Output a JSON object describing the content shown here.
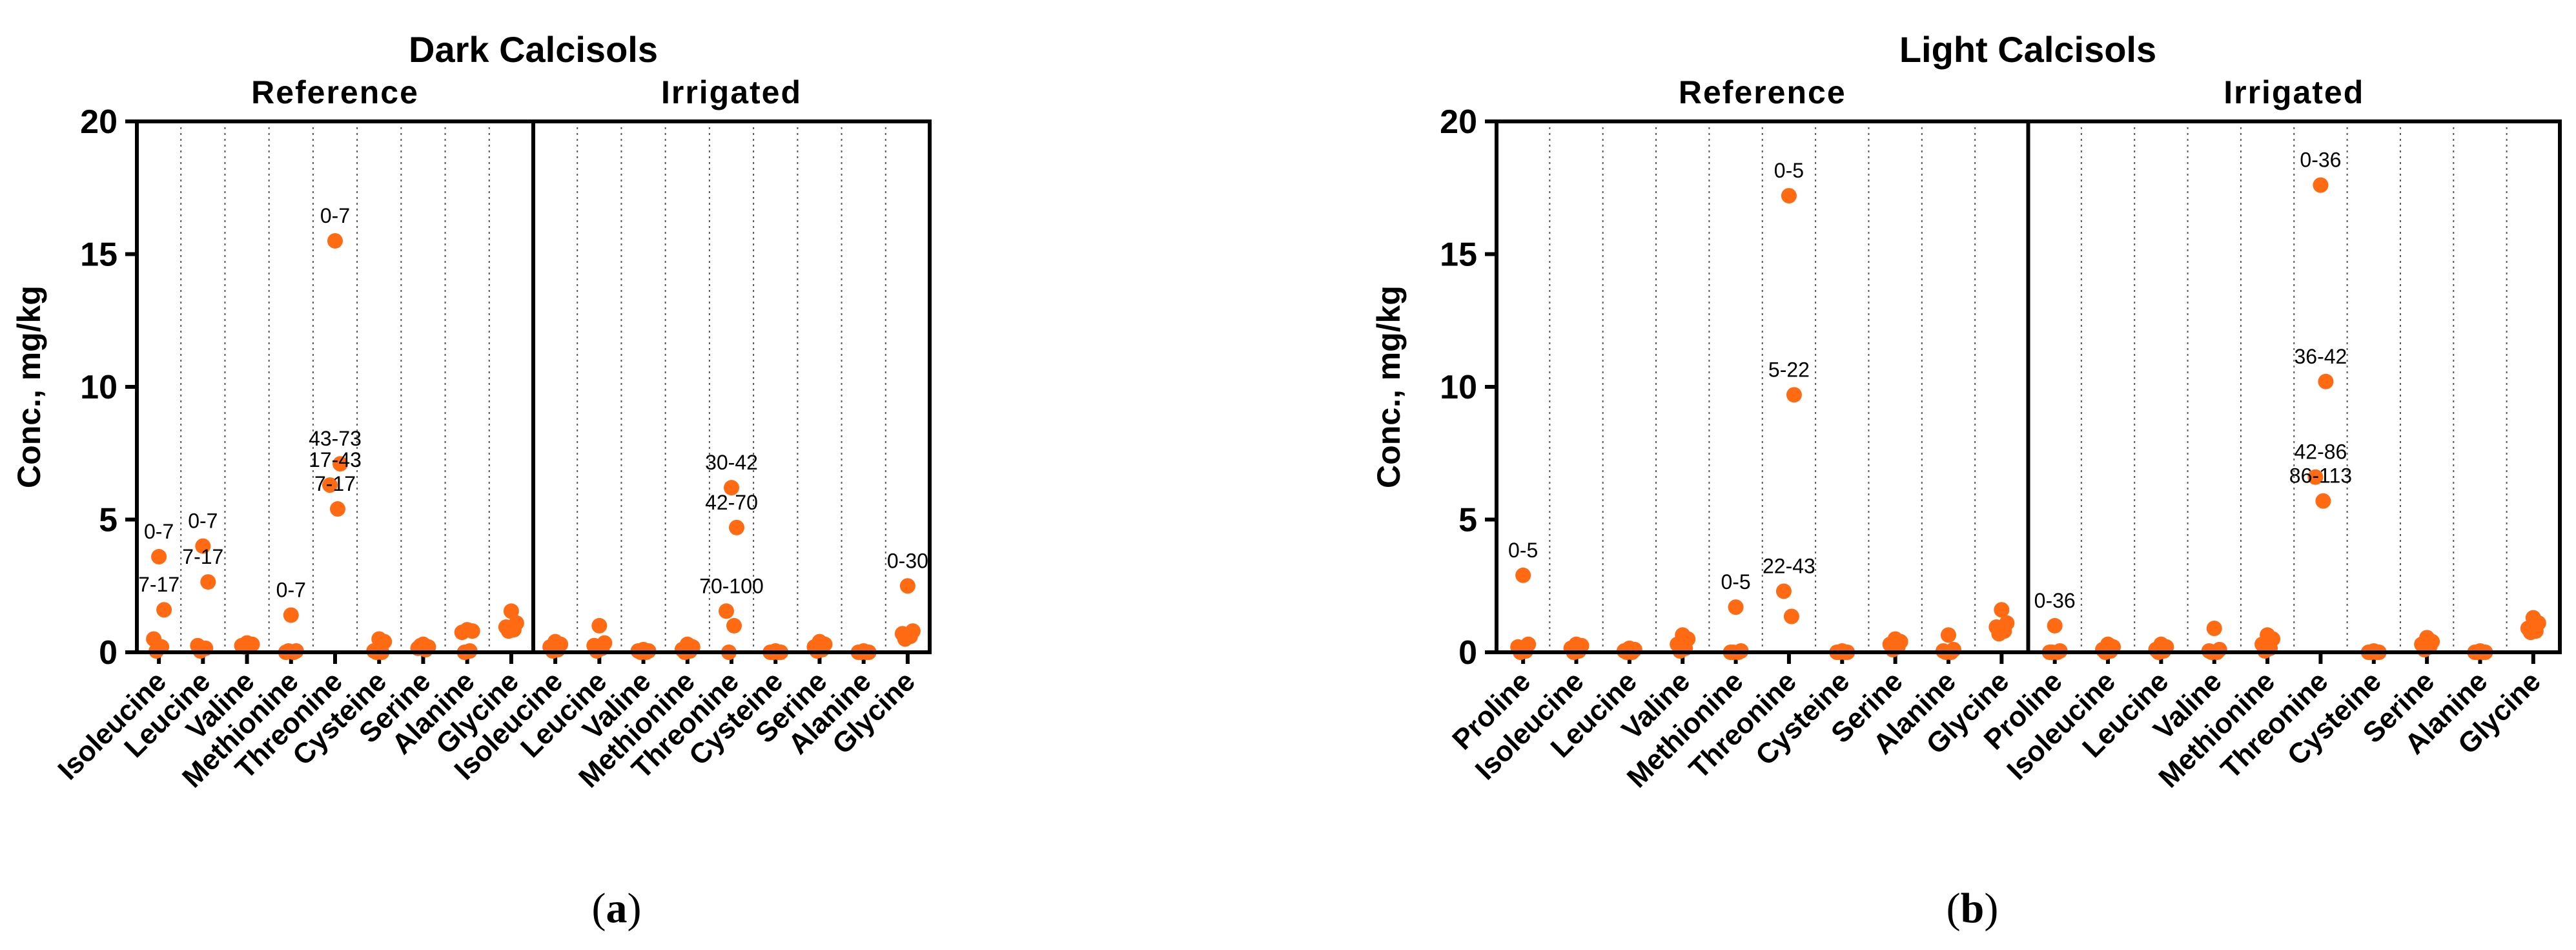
{
  "panels": [
    {
      "label_prefix": "(",
      "label_letter": "a",
      "label_suffix": ")"
    },
    {
      "label_prefix": "(",
      "label_letter": "b",
      "label_suffix": ")"
    }
  ],
  "marker_color": "#FF6A13",
  "chart_data": [
    {
      "type": "scatter",
      "title": "Dark Calcisols",
      "ylabel": "Conc., mg/kg",
      "ylim": [
        0,
        20
      ],
      "yticks": [
        0,
        5,
        10,
        15,
        20
      ],
      "grid": "dotted vertical separators between categories",
      "groups": [
        {
          "name": "Reference",
          "categories": [
            "Isoleucine",
            "Leucine",
            "Valine",
            "Methionine",
            "Threonine",
            "Cysteine",
            "Serine",
            "Alanine",
            "Glycine"
          ],
          "points": [
            [
              {
                "y": 3.6,
                "label": "0-7"
              },
              {
                "y": 1.6,
                "label": "7-17"
              },
              {
                "y": 0.5
              },
              {
                "y": 0.2
              },
              {
                "y": 0.05
              }
            ],
            [
              {
                "y": 4.0,
                "label": "0-7"
              },
              {
                "y": 2.65,
                "label": "7-17"
              },
              {
                "y": 0.25
              },
              {
                "y": 0.15
              },
              {
                "y": 0.05
              }
            ],
            [
              {
                "y": 0.35
              },
              {
                "y": 0.3
              },
              {
                "y": 0.25
              },
              {
                "y": 0.3
              },
              {
                "y": 0.2
              }
            ],
            [
              {
                "y": 1.4,
                "label": "0-7"
              },
              {
                "y": 0.05
              },
              {
                "y": 0.0
              },
              {
                "y": 0.0
              },
              {
                "y": 0.05
              }
            ],
            [
              {
                "y": 15.5,
                "label": "0-7"
              },
              {
                "y": 7.1,
                "label": "43-73"
              },
              {
                "y": 6.3,
                "label": "17-43"
              },
              {
                "y": 5.4,
                "label": "7-17"
              }
            ],
            [
              {
                "y": 0.5
              },
              {
                "y": 0.4
              },
              {
                "y": 0.05
              },
              {
                "y": 0.0
              },
              {
                "y": 0.0
              }
            ],
            [
              {
                "y": 0.3
              },
              {
                "y": 0.2
              },
              {
                "y": 0.15
              },
              {
                "y": 0.1
              },
              {
                "y": 0.25
              }
            ],
            [
              {
                "y": 0.85
              },
              {
                "y": 0.8
              },
              {
                "y": 0.75
              },
              {
                "y": 0.05
              },
              {
                "y": 0.0
              }
            ],
            [
              {
                "y": 1.55
              },
              {
                "y": 1.1
              },
              {
                "y": 0.95
              },
              {
                "y": 0.85
              },
              {
                "y": 0.8
              }
            ]
          ]
        },
        {
          "name": "Irrigated",
          "categories": [
            "Isoleucine",
            "Leucine",
            "Valine",
            "Methionine",
            "Threonine",
            "Cysteine",
            "Serine",
            "Alanine",
            "Glycine"
          ],
          "points": [
            [
              {
                "y": 0.4
              },
              {
                "y": 0.3
              },
              {
                "y": 0.2
              },
              {
                "y": 0.1
              },
              {
                "y": 0.05
              }
            ],
            [
              {
                "y": 1.0
              },
              {
                "y": 0.35
              },
              {
                "y": 0.25
              },
              {
                "y": 0.15
              },
              {
                "y": 0.05
              }
            ],
            [
              {
                "y": 0.1
              },
              {
                "y": 0.05
              },
              {
                "y": 0.05
              },
              {
                "y": 0.0
              },
              {
                "y": 0.0
              }
            ],
            [
              {
                "y": 0.3
              },
              {
                "y": 0.2
              },
              {
                "y": 0.1
              },
              {
                "y": 0.05
              },
              {
                "y": 0.0
              }
            ],
            [
              {
                "y": 6.2,
                "label": "30-42"
              },
              {
                "y": 4.7,
                "label": "42-70"
              },
              {
                "y": 1.55,
                "label": "70-100"
              },
              {
                "y": 1.0
              },
              {
                "y": 0.0
              }
            ],
            [
              {
                "y": 0.05
              },
              {
                "y": 0.0
              },
              {
                "y": 0.0
              },
              {
                "y": 0.0
              },
              {
                "y": 0.0
              }
            ],
            [
              {
                "y": 0.4
              },
              {
                "y": 0.3
              },
              {
                "y": 0.2
              },
              {
                "y": 0.1
              },
              {
                "y": 0.05
              }
            ],
            [
              {
                "y": 0.05
              },
              {
                "y": 0.0
              },
              {
                "y": 0.0
              },
              {
                "y": 0.0
              },
              {
                "y": 0.0
              }
            ],
            [
              {
                "y": 2.5,
                "label": "0-30"
              },
              {
                "y": 0.8
              },
              {
                "y": 0.7
              },
              {
                "y": 0.6
              },
              {
                "y": 0.5
              }
            ]
          ]
        }
      ]
    },
    {
      "type": "scatter",
      "title": "Light Calcisols",
      "ylabel": "Conc., mg/kg",
      "ylim": [
        0,
        20
      ],
      "yticks": [
        0,
        5,
        10,
        15,
        20
      ],
      "grid": "dotted vertical separators between categories",
      "groups": [
        {
          "name": "Reference",
          "categories": [
            "Proline",
            "Isoleucine",
            "Leucine",
            "Valine",
            "Methionine",
            "Threonine",
            "Cysteine",
            "Serine",
            "Alanine",
            "Glycine"
          ],
          "points": [
            [
              {
                "y": 2.9,
                "label": "0-5"
              },
              {
                "y": 0.3
              },
              {
                "y": 0.2
              },
              {
                "y": 0.05
              },
              {
                "y": 0.0
              }
            ],
            [
              {
                "y": 0.3
              },
              {
                "y": 0.25
              },
              {
                "y": 0.15
              },
              {
                "y": 0.05
              },
              {
                "y": 0.0
              }
            ],
            [
              {
                "y": 0.15
              },
              {
                "y": 0.1
              },
              {
                "y": 0.05
              },
              {
                "y": 0.0
              },
              {
                "y": 0.0
              }
            ],
            [
              {
                "y": 0.65
              },
              {
                "y": 0.5
              },
              {
                "y": 0.3
              },
              {
                "y": 0.15
              },
              {
                "y": 0.05
              }
            ],
            [
              {
                "y": 1.7,
                "label": "0-5"
              },
              {
                "y": 0.05
              },
              {
                "y": 0.0
              },
              {
                "y": 0.0
              },
              {
                "y": 0.0
              }
            ],
            [
              {
                "y": 17.2,
                "label": "0-5"
              },
              {
                "y": 9.7,
                "label": "5-22"
              },
              {
                "y": 2.3,
                "label": "22-43"
              },
              {
                "y": 1.35
              }
            ],
            [
              {
                "y": 0.05
              },
              {
                "y": 0.0
              },
              {
                "y": 0.0
              },
              {
                "y": 0.0
              },
              {
                "y": 0.0
              }
            ],
            [
              {
                "y": 0.5
              },
              {
                "y": 0.4
              },
              {
                "y": 0.3
              },
              {
                "y": 0.2
              },
              {
                "y": 0.1
              }
            ],
            [
              {
                "y": 0.65
              },
              {
                "y": 0.1
              },
              {
                "y": 0.05
              },
              {
                "y": 0.0
              },
              {
                "y": 0.0
              }
            ],
            [
              {
                "y": 1.6
              },
              {
                "y": 1.1
              },
              {
                "y": 0.95
              },
              {
                "y": 0.8
              },
              {
                "y": 0.7
              }
            ]
          ]
        },
        {
          "name": "Irrigated",
          "categories": [
            "Proline",
            "Isoleucine",
            "Leucine",
            "Valine",
            "Methionine",
            "Threonine",
            "Cysteine",
            "Serine",
            "Alanine",
            "Glycine"
          ],
          "points": [
            [
              {
                "y": 1.0,
                "label": "0-36"
              },
              {
                "y": 0.05
              },
              {
                "y": 0.0
              },
              {
                "y": 0.0
              },
              {
                "y": 0.0
              }
            ],
            [
              {
                "y": 0.3
              },
              {
                "y": 0.2
              },
              {
                "y": 0.1
              },
              {
                "y": 0.05
              },
              {
                "y": 0.0
              }
            ],
            [
              {
                "y": 0.3
              },
              {
                "y": 0.2
              },
              {
                "y": 0.1
              },
              {
                "y": 0.05
              },
              {
                "y": 0.0
              }
            ],
            [
              {
                "y": 0.9
              },
              {
                "y": 0.1
              },
              {
                "y": 0.05
              },
              {
                "y": 0.0
              },
              {
                "y": 0.0
              }
            ],
            [
              {
                "y": 0.65
              },
              {
                "y": 0.5
              },
              {
                "y": 0.3
              },
              {
                "y": 0.15
              },
              {
                "y": 0.05
              }
            ],
            [
              {
                "y": 17.6,
                "label": "0-36"
              },
              {
                "y": 10.2,
                "label": "36-42"
              },
              {
                "y": 6.6,
                "label": "42-86"
              },
              {
                "y": 5.7,
                "label": "86-113"
              }
            ],
            [
              {
                "y": 0.05
              },
              {
                "y": 0.0
              },
              {
                "y": 0.0
              },
              {
                "y": 0.0
              },
              {
                "y": 0.0
              }
            ],
            [
              {
                "y": 0.55
              },
              {
                "y": 0.4
              },
              {
                "y": 0.3
              },
              {
                "y": 0.2
              },
              {
                "y": 0.1
              }
            ],
            [
              {
                "y": 0.05
              },
              {
                "y": 0.0
              },
              {
                "y": 0.0
              },
              {
                "y": 0.0
              },
              {
                "y": 0.0
              }
            ],
            [
              {
                "y": 1.3
              },
              {
                "y": 1.1
              },
              {
                "y": 0.9
              },
              {
                "y": 0.8
              },
              {
                "y": 0.75
              }
            ]
          ]
        }
      ]
    }
  ]
}
